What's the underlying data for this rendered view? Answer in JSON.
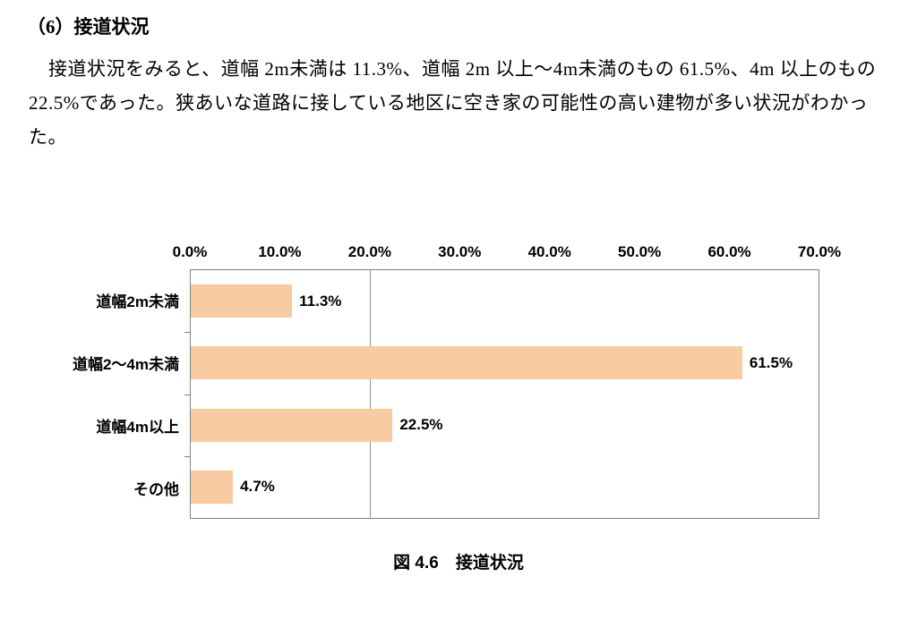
{
  "page": {
    "heading": "（6）接道状況",
    "paragraph": "接道状況をみると、道幅 2m未満は 11.3%、道幅 2m 以上～4m未満のもの 61.5%、4m 以上のもの 22.5%であった。狭あいな道路に接している地区に空き家の可能性の高い建物が多い状況がわかった。",
    "figure_caption": "図 4.6　接道状況"
  },
  "chart_data": {
    "type": "bar",
    "orientation": "horizontal",
    "title": "図 4.6 接道状況",
    "categories": [
      "道幅2m未満",
      "道幅2～4m未満",
      "道幅4m以上",
      "その他"
    ],
    "values": [
      11.3,
      61.5,
      22.5,
      4.7
    ],
    "value_labels": [
      "11.3%",
      "61.5%",
      "22.5%",
      "4.7%"
    ],
    "x_ticks": [
      "0.0%",
      "10.0%",
      "20.0%",
      "30.0%",
      "40.0%",
      "50.0%",
      "60.0%",
      "70.0%"
    ],
    "xlim": [
      0,
      70
    ],
    "gridline_at": 20,
    "bar_color": "#F8CBA2",
    "axis_color": "#808080",
    "grid": "single vertical line at 20%",
    "legend": false
  }
}
